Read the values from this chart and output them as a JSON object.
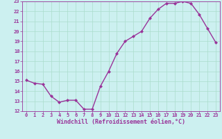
{
  "x": [
    0,
    1,
    2,
    3,
    4,
    5,
    6,
    7,
    8,
    9,
    10,
    11,
    12,
    13,
    14,
    15,
    16,
    17,
    18,
    19,
    20,
    21,
    22,
    23
  ],
  "y": [
    15.1,
    14.8,
    14.7,
    13.5,
    12.9,
    13.1,
    13.1,
    12.2,
    12.2,
    14.5,
    16.0,
    17.8,
    19.0,
    19.5,
    20.0,
    21.3,
    22.2,
    22.8,
    22.8,
    23.0,
    22.8,
    21.7,
    20.3,
    18.9
  ],
  "xlim": [
    -0.5,
    23.5
  ],
  "ylim": [
    12,
    23
  ],
  "yticks": [
    12,
    13,
    14,
    15,
    16,
    17,
    18,
    19,
    20,
    21,
    22,
    23
  ],
  "xticks": [
    0,
    1,
    2,
    3,
    4,
    5,
    6,
    7,
    8,
    9,
    10,
    11,
    12,
    13,
    14,
    15,
    16,
    17,
    18,
    19,
    20,
    21,
    22,
    23
  ],
  "xlabel": "Windchill (Refroidissement éolien,°C)",
  "line_color": "#993399",
  "marker_color": "#993399",
  "bg_color": "#ccf0f0",
  "grid_color": "#aaddcc",
  "tick_color": "#993399",
  "xlabel_color": "#993399",
  "tick_labelsize": 5,
  "xlabel_fontsize": 6,
  "linewidth": 1.0,
  "markersize": 2.0
}
